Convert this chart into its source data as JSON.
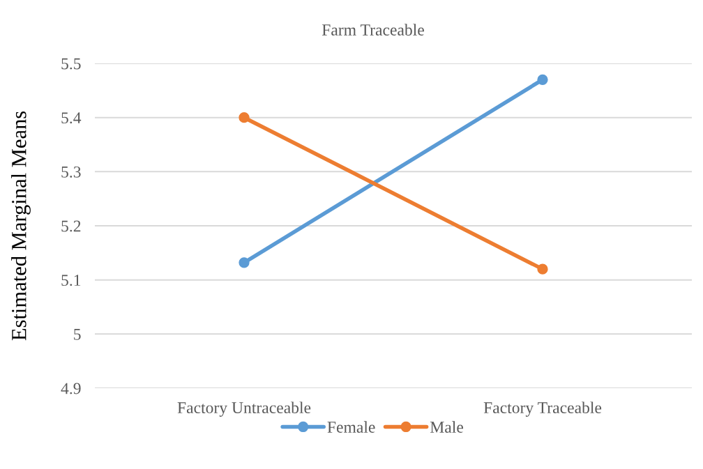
{
  "chart_data": {
    "type": "line",
    "title": "Farm Traceable",
    "ylabel": "Estimated Marginal Means",
    "categories": [
      "Factory Untraceable",
      "Factory Traceable"
    ],
    "series": [
      {
        "name": "Female",
        "color": "#5b9bd5",
        "values": [
          5.132,
          5.47
        ]
      },
      {
        "name": "Male",
        "color": "#ed7d31",
        "values": [
          5.4,
          5.12
        ]
      }
    ],
    "ylim": [
      4.9,
      5.5
    ],
    "yticks": [
      {
        "value": 4.9,
        "label": "4.9"
      },
      {
        "value": 5.0,
        "label": "5"
      },
      {
        "value": 5.1,
        "label": "5.1"
      },
      {
        "value": 5.2,
        "label": "5.2"
      },
      {
        "value": 5.3,
        "label": "5.3"
      },
      {
        "value": 5.4,
        "label": "5.4"
      },
      {
        "value": 5.5,
        "label": "5.5"
      }
    ],
    "grid": "y",
    "legend": "bottom",
    "marker": "circle",
    "line_style": "solid"
  }
}
